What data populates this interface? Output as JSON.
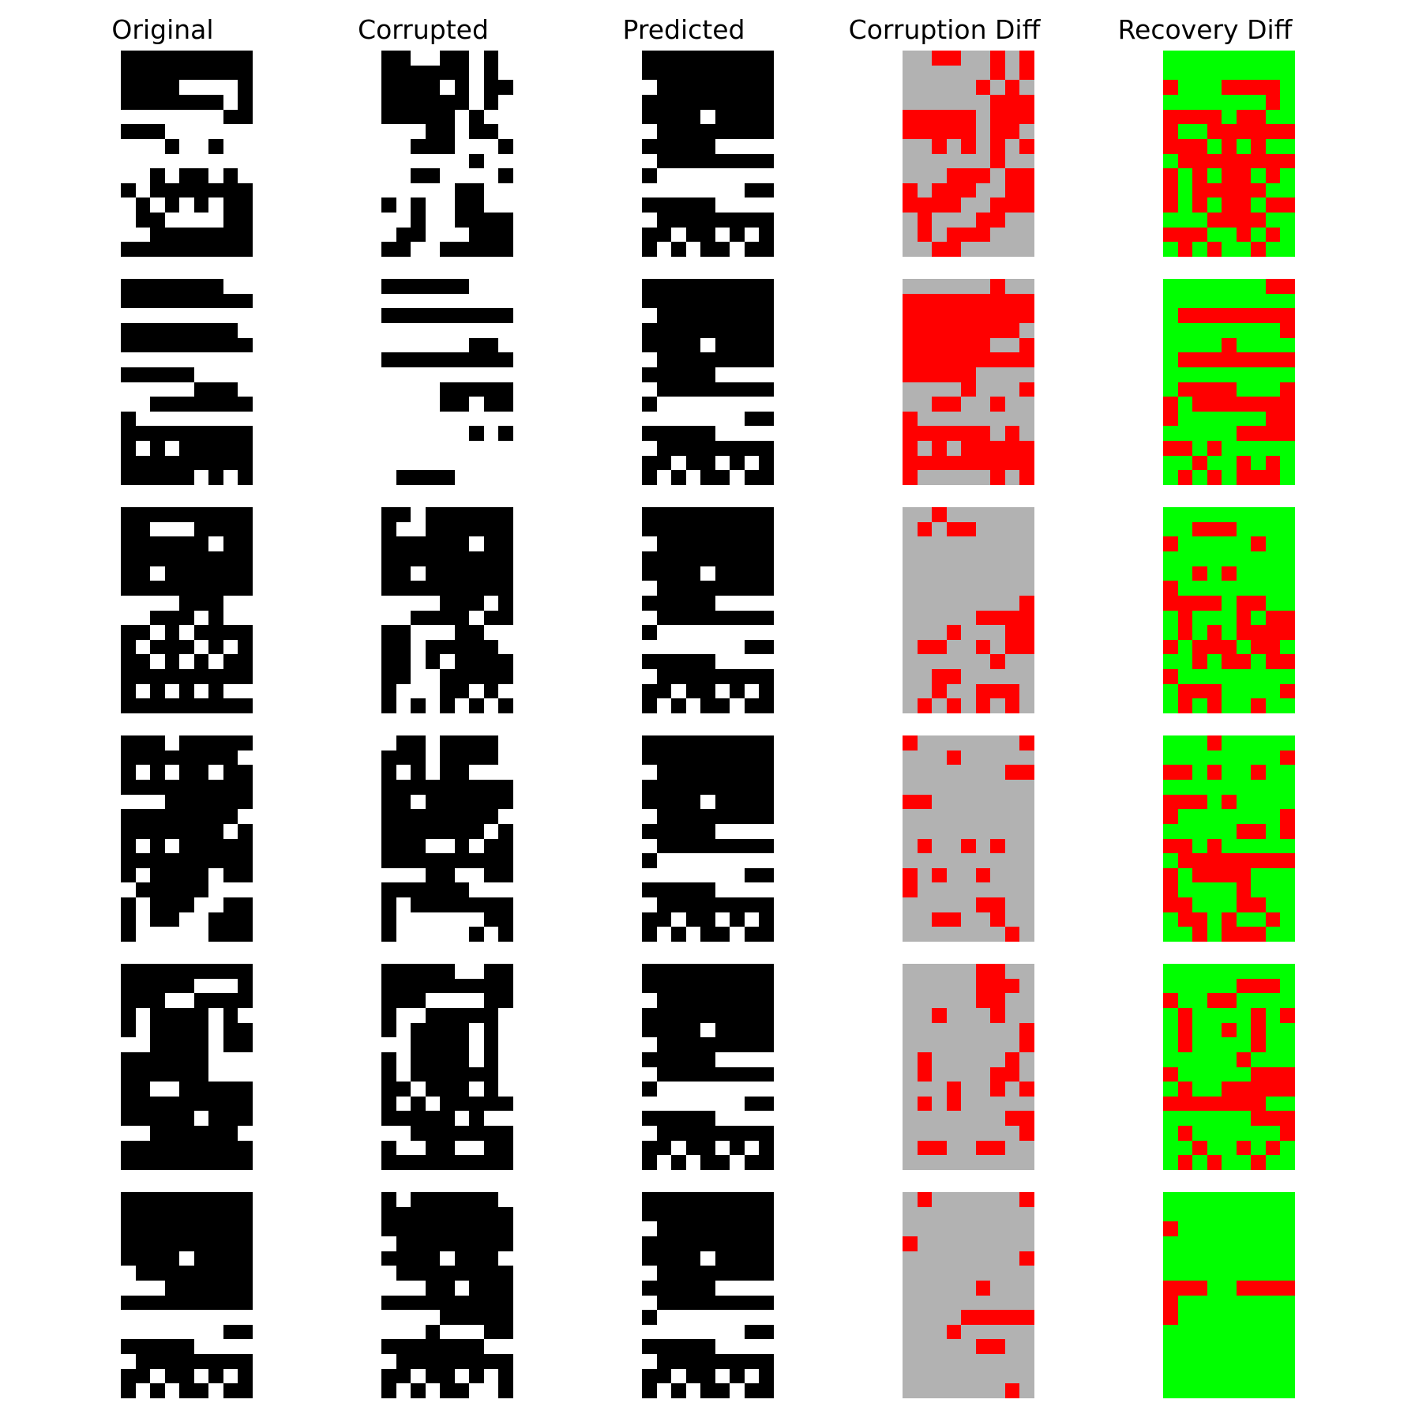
{
  "column_titles": [
    "Original",
    "Corrupted",
    "Predicted",
    "Corruption Diff",
    "Recovery Diff"
  ],
  "colors": {
    "on": "#000000",
    "off": "#ffffff",
    "diff_same": "#b2b2b2",
    "diff_changed": "#ff0000",
    "recovery_correct": "#00ff00",
    "recovery_wrong": "#ff0000"
  },
  "grid": {
    "rows": 14,
    "cols": 9
  },
  "predicted": [
    "111111111",
    "111111111",
    "011111111",
    "111111111",
    "111101111",
    "011111111",
    "111110000",
    "011111111",
    "100000000",
    "000000011",
    "111110000",
    "011111111",
    "110110101",
    "101011011"
  ],
  "samples": [
    {
      "original": [
        "111111111",
        "111111111",
        "111100001",
        "111111101",
        "000000011",
        "111000000",
        "000100100",
        "000000000",
        "001011010",
        "101111111",
        "010101011",
        "011000011",
        "001111111",
        "111111111"
      ],
      "corrupted": [
        "110011010",
        "111111010",
        "111101011",
        "111111010",
        "111110100",
        "000110110",
        "001110001",
        "000000100",
        "001100001",
        "000001100",
        "101001100",
        "001001111",
        "011000111",
        "110011111"
      ]
    },
    {
      "original": [
        "111111100",
        "111111111",
        "000000000",
        "111111110",
        "111111111",
        "000000000",
        "111110000",
        "000001110",
        "001111111",
        "100000000",
        "111111111",
        "101011111",
        "111111111",
        "111110101"
      ],
      "corrupted": [
        "111111000",
        "000000000",
        "111111111",
        "000000000",
        "000000110",
        "111111111",
        "000000000",
        "000011111",
        "000011011",
        "000000000",
        "000000101",
        "000000000",
        "000000000",
        "011110000"
      ]
    },
    {
      "original": [
        "111111111",
        "110001111",
        "111111011",
        "111111111",
        "110111111",
        "111111111",
        "000011100",
        "001110100",
        "110101111",
        "101110101",
        "110101011",
        "111111111",
        "101010100",
        "111111111"
      ],
      "corrupted": [
        "110111111",
        "100111111",
        "111111011",
        "111111111",
        "110111111",
        "111111111",
        "000011101",
        "001111011",
        "110001100",
        "110111110",
        "110101111",
        "110011111",
        "100011010",
        "101010101"
      ]
    },
    {
      "original": [
        "111011111",
        "111111110",
        "101011011",
        "111111111",
        "000111111",
        "111111110",
        "111111101",
        "101011111",
        "111111111",
        "101111011",
        "011111000",
        "101110011",
        "101100111",
        "100000111"
      ],
      "corrupted": [
        "011011110",
        "111011110",
        "101011000",
        "111111111",
        "110111111",
        "111111110",
        "111111101",
        "111001011",
        "111111111",
        "000110011",
        "111111000",
        "101111111",
        "100000011",
        "100000101"
      ]
    },
    {
      "original": [
        "111111111",
        "111110001",
        "111001111",
        "101111010",
        "101111011",
        "001111011",
        "111111000",
        "111111000",
        "110011111",
        "111111111",
        "111110111",
        "001111110",
        "111111111",
        "111111111"
      ],
      "corrupted": [
        "111110011",
        "111111111",
        "111000011",
        "100111110",
        "101111010",
        "001111010",
        "101111010",
        "101111110",
        "110111010",
        "101011111",
        "111110100",
        "001111111",
        "100110011",
        "111111111"
      ]
    },
    {
      "original": [
        "111111111",
        "111111111",
        "111111111",
        "111111111",
        "111101111",
        "011111111",
        "000111111",
        "111111111",
        "000000000",
        "000000011",
        "111110000",
        "011111111",
        "110110101",
        "101011011"
      ],
      "corrupted": [
        "101111110",
        "111111111",
        "111111111",
        "011111111",
        "111101110",
        "011111111",
        "000110111",
        "111111111",
        "000011111",
        "000100011",
        "111111100",
        "011111111",
        "110110101",
        "101011001"
      ]
    }
  ]
}
